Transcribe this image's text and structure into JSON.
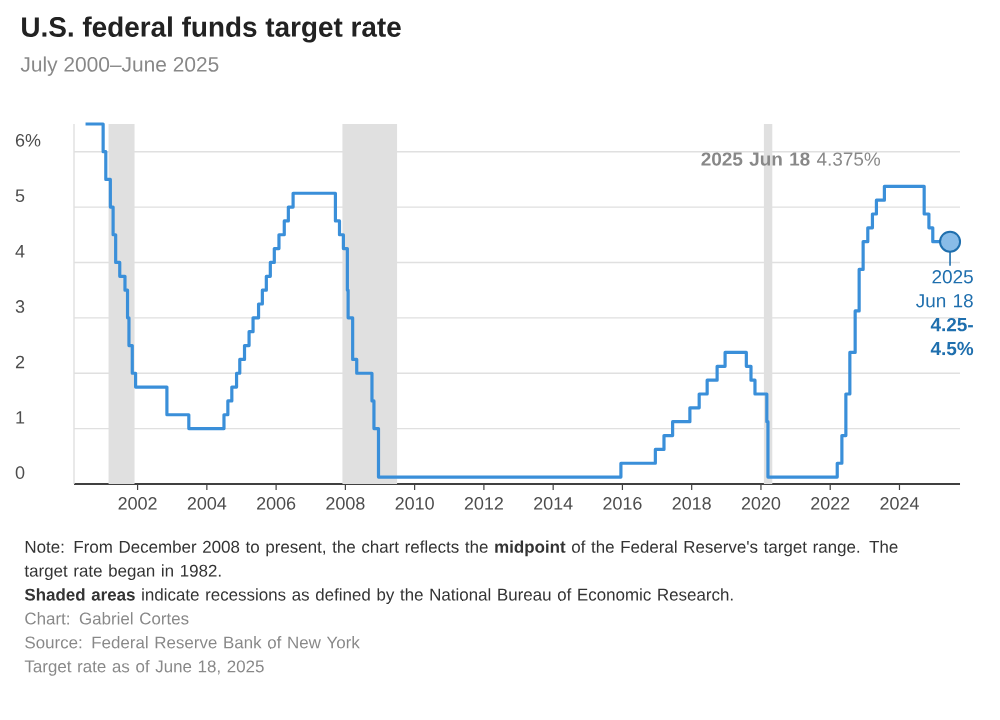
{
  "chart_data": {
    "type": "step",
    "title": "U.S. federal funds target rate",
    "subtitle": "July 2000–June 2025",
    "x": [
      "2000-07-01",
      "2001-01-03",
      "2001-01-31",
      "2001-03-20",
      "2001-04-18",
      "2001-05-15",
      "2001-06-27",
      "2001-08-21",
      "2001-09-17",
      "2001-10-02",
      "2001-11-06",
      "2001-12-11",
      "2002-11-06",
      "2003-06-25",
      "2004-06-30",
      "2004-08-10",
      "2004-09-21",
      "2004-11-10",
      "2004-12-14",
      "2005-02-02",
      "2005-03-22",
      "2005-05-03",
      "2005-06-30",
      "2005-08-09",
      "2005-09-20",
      "2005-11-01",
      "2005-12-13",
      "2006-01-31",
      "2006-03-28",
      "2006-05-10",
      "2006-06-29",
      "2007-09-18",
      "2007-10-31",
      "2007-12-11",
      "2008-01-22",
      "2008-01-30",
      "2008-03-18",
      "2008-04-30",
      "2008-10-08",
      "2008-10-29",
      "2008-12-16",
      "2015-12-16",
      "2016-12-14",
      "2017-03-15",
      "2017-06-14",
      "2017-12-13",
      "2018-03-21",
      "2018-06-13",
      "2018-09-26",
      "2018-12-19",
      "2019-07-31",
      "2019-09-18",
      "2019-10-30",
      "2020-03-03",
      "2020-03-15",
      "2022-03-16",
      "2022-05-04",
      "2022-06-15",
      "2022-07-27",
      "2022-09-21",
      "2022-11-02",
      "2022-12-14",
      "2023-02-01",
      "2023-03-22",
      "2023-05-03",
      "2023-07-26",
      "2024-09-18",
      "2024-11-07",
      "2024-12-18",
      "2025-06-18"
    ],
    "series": [
      {
        "color": "#3a8fd9",
        "values": [
          6.5,
          6.0,
          5.5,
          5.0,
          4.5,
          4.0,
          3.75,
          3.5,
          3.0,
          2.5,
          2.0,
          1.75,
          1.25,
          1.0,
          1.25,
          1.5,
          1.75,
          2.0,
          2.25,
          2.5,
          2.75,
          3.0,
          3.25,
          3.5,
          3.75,
          4.0,
          4.25,
          4.5,
          4.75,
          5.0,
          5.25,
          4.75,
          4.5,
          4.25,
          3.5,
          3.0,
          2.25,
          2.0,
          1.5,
          1.0,
          0.125,
          0.375,
          0.625,
          0.875,
          1.125,
          1.375,
          1.625,
          1.875,
          2.125,
          2.375,
          2.125,
          1.875,
          1.625,
          1.125,
          0.125,
          0.375,
          0.875,
          1.625,
          2.375,
          3.125,
          3.875,
          4.375,
          4.625,
          4.875,
          5.125,
          5.375,
          4.875,
          4.625,
          4.375,
          4.375
        ]
      }
    ],
    "xlim": [
      "2000-03-01",
      "2025-10-01"
    ],
    "xticks": [
      "2002",
      "2004",
      "2006",
      "2008",
      "2010",
      "2012",
      "2014",
      "2016",
      "2018",
      "2020",
      "2022",
      "2024"
    ],
    "ylim": [
      0,
      6.5
    ],
    "yticks": [
      0,
      1,
      2,
      3,
      4,
      5,
      {
        "value": 6,
        "label": "6%"
      }
    ],
    "grid": "y",
    "bands": [
      {
        "axis": "x",
        "from": "2001-03-01",
        "to": "2001-11-30",
        "color": "#e0e0e0"
      },
      {
        "axis": "x",
        "from": "2007-12-01",
        "to": "2009-06-30",
        "color": "#e0e0e0"
      },
      {
        "axis": "x",
        "from": "2020-02-01",
        "to": "2020-04-30",
        "color": "#e0e0e0"
      }
    ],
    "annotations": [
      "**2025 Jun 18** 4.375%",
      {
        "text": "2025 Jun 18 **4.25-4.5%**",
        "x": "2025-06-18",
        "y": 4.375
      },
      "Note: From December 2008 to present, the chart reflects the **midpoint** of the Federal Reserve's target range. The target rate began in 1982.",
      "**Shaded areas** indicate recessions as defined by the National Bureau of Economic Research.",
      "Chart: Gabriel Cortes",
      "Source: Federal Reserve Bank of New York",
      "Target rate as of June 18, 2025"
    ]
  }
}
